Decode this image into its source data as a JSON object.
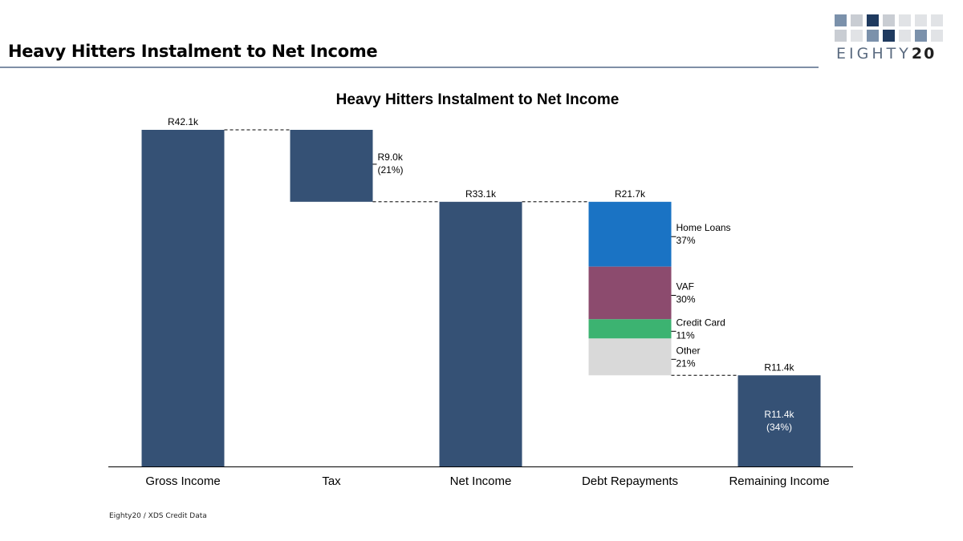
{
  "page": {
    "title": "Heavy Hitters Instalment to Net Income",
    "source": "Eighty20 / XDS Credit Data"
  },
  "logo": {
    "text_light": "EIGHTY",
    "text_bold": "20",
    "colors": [
      "#1f3a5f",
      "#7b91ab",
      "#c9cdd3",
      "#e1e3e6"
    ]
  },
  "chart_data": {
    "type": "bar",
    "subtype": "waterfall",
    "title": "Heavy Hitters Instalment to Net Income",
    "xlabel": "",
    "ylabel": "",
    "ylim": [
      0,
      42.1
    ],
    "unit": "R thousands",
    "categories": [
      "Gross Income",
      "Tax",
      "Net Income",
      "Debt Repayments",
      "Remaining Income"
    ],
    "bars": [
      {
        "category": "Gross Income",
        "base": 0,
        "top": 42.1,
        "top_label": "R42.1k",
        "color": "#355175"
      },
      {
        "category": "Tax",
        "base": 33.1,
        "top": 42.1,
        "side_label": [
          "R9.0k",
          "(21%)"
        ],
        "color": "#355175"
      },
      {
        "category": "Net Income",
        "base": 0,
        "top": 33.1,
        "top_label": "R33.1k",
        "color": "#355175"
      },
      {
        "category": "Remaining Income",
        "base": 0,
        "top": 11.4,
        "top_label": "R11.4k",
        "inner_label": [
          "R11.4k",
          "(34%)"
        ],
        "color": "#355175"
      }
    ],
    "debt": {
      "category": "Debt Repayments",
      "total": 21.7,
      "base": 11.4,
      "top": 33.1,
      "top_label": "R21.7k",
      "segments": [
        {
          "name": "Home Loans",
          "pct": 37,
          "pct_label": "37%",
          "color": "#1a73c4"
        },
        {
          "name": "VAF",
          "pct": 30,
          "pct_label": "30%",
          "color": "#8c4b6e"
        },
        {
          "name": "Credit Card",
          "pct": 11,
          "pct_label": "11%",
          "color": "#3cb371"
        },
        {
          "name": "Other",
          "pct": 21,
          "pct_label": "21%",
          "color": "#d9d9d9"
        }
      ]
    },
    "connectors": "dashed",
    "grid": false,
    "legend": "none"
  }
}
